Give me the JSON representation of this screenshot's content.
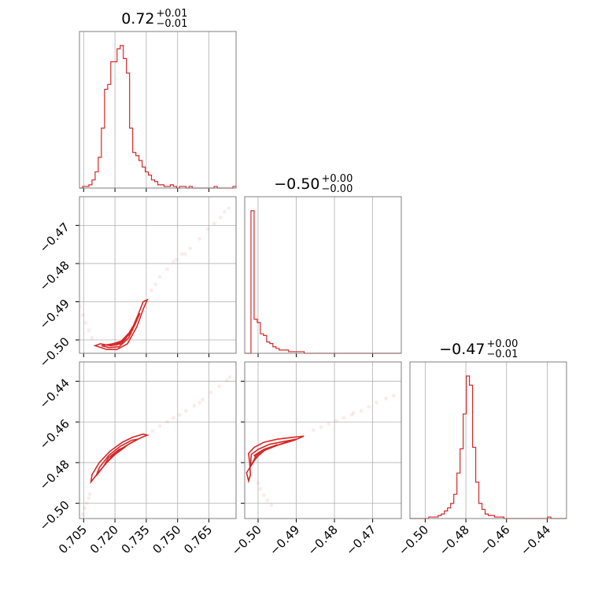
{
  "chart_data": {
    "type": "corner",
    "color": "#d62728",
    "grid": true,
    "parameters": [
      {
        "index": 0,
        "title": {
          "value": "0.72",
          "plus": "+0.01",
          "minus": "−0.01"
        },
        "range": [
          0.703,
          0.778
        ],
        "ticks": [
          0.705,
          0.72,
          0.735,
          0.75,
          0.765
        ],
        "tick_labels": [
          "0.705",
          "0.720",
          "0.735",
          "0.750",
          "0.765"
        ]
      },
      {
        "index": 1,
        "title": {
          "value": "−0.50",
          "plus": "+0.00",
          "minus": "−0.00"
        },
        "range": [
          -0.5035,
          -0.4625
        ],
        "ticks": [
          -0.5,
          -0.49,
          -0.48,
          -0.47
        ],
        "tick_labels": [
          "−0.50",
          "−0.49",
          "−0.48",
          "−0.47"
        ]
      },
      {
        "index": 2,
        "title": {
          "value": "−0.47",
          "plus": "+0.00",
          "minus": "−0.01"
        },
        "range": [
          -0.5075,
          -0.4305
        ],
        "ticks": [
          -0.5,
          -0.48,
          -0.46,
          -0.44
        ],
        "tick_labels": [
          "−0.50",
          "−0.48",
          "−0.46",
          "−0.44"
        ]
      }
    ],
    "histograms": [
      {
        "param": 0,
        "edges_start": 0.703,
        "edges_end": 0.778,
        "bins": 50,
        "counts": [
          0,
          1,
          1,
          2,
          5,
          10,
          19,
          37,
          61,
          64,
          78,
          78,
          86,
          88,
          80,
          71,
          37,
          22,
          20,
          17,
          13,
          10,
          8,
          5,
          4,
          2,
          2,
          1,
          1,
          2,
          1,
          0,
          1,
          1,
          0,
          1,
          0,
          0,
          0,
          0,
          0,
          0,
          0,
          1,
          0,
          0,
          0,
          0,
          0,
          1
        ]
      },
      {
        "param": 1,
        "edges_start": -0.5035,
        "edges_end": -0.4625,
        "bins": 50,
        "counts": [
          0,
          0,
          88,
          21,
          19,
          12,
          11,
          7,
          6,
          4,
          3,
          2,
          2,
          2,
          1,
          1,
          1,
          1,
          1,
          0,
          0,
          0,
          0,
          0,
          0,
          0,
          0,
          0,
          0,
          0,
          0,
          0,
          0,
          0,
          0,
          0,
          0,
          0,
          0,
          0,
          0,
          0,
          0,
          0,
          0,
          0,
          0,
          0,
          0,
          0
        ]
      },
      {
        "param": 2,
        "edges_start": -0.5075,
        "edges_end": -0.4305,
        "bins": 50,
        "counts": [
          0,
          0,
          0,
          0,
          0,
          0,
          1,
          1,
          1,
          2,
          3,
          5,
          7,
          10,
          16,
          30,
          46,
          69,
          94,
          88,
          47,
          24,
          10,
          6,
          3,
          2,
          2,
          1,
          1,
          1,
          0,
          0,
          0,
          0,
          0,
          0,
          0,
          0,
          0,
          0,
          0,
          0,
          0,
          0,
          1,
          0,
          0,
          0,
          0,
          0
        ]
      }
    ],
    "pairs": [
      {
        "x_param": 0,
        "y_param": 1,
        "contours": [
          [
            [
              0.7105,
              -0.5015
            ],
            [
              0.716,
              -0.5025
            ],
            [
              0.721,
              -0.5025
            ],
            [
              0.726,
              -0.501
            ],
            [
              0.7305,
              -0.4965
            ],
            [
              0.7335,
              -0.492
            ],
            [
              0.7355,
              -0.4895
            ],
            [
              0.7335,
              -0.49
            ],
            [
              0.731,
              -0.4935
            ],
            [
              0.7275,
              -0.498
            ],
            [
              0.723,
              -0.501
            ],
            [
              0.718,
              -0.5015
            ],
            [
              0.713,
              -0.501
            ],
            [
              0.7105,
              -0.5015
            ]
          ],
          [
            [
              0.7135,
              -0.5015
            ],
            [
              0.717,
              -0.502
            ],
            [
              0.722,
              -0.5018
            ],
            [
              0.7265,
              -0.4995
            ],
            [
              0.73,
              -0.4955
            ],
            [
              0.732,
              -0.493
            ],
            [
              0.7305,
              -0.4945
            ],
            [
              0.727,
              -0.4985
            ],
            [
              0.722,
              -0.5008
            ],
            [
              0.717,
              -0.5012
            ],
            [
              0.7135,
              -0.5015
            ]
          ],
          [
            [
              0.716,
              -0.5014
            ],
            [
              0.721,
              -0.5013
            ],
            [
              0.725,
              -0.4998
            ],
            [
              0.7285,
              -0.4965
            ],
            [
              0.727,
              -0.498
            ],
            [
              0.723,
              -0.5003
            ],
            [
              0.719,
              -0.501
            ],
            [
              0.716,
              -0.5014
            ]
          ]
        ],
        "scatter": [
          [
            0.703,
            -0.4912
          ],
          [
            0.7045,
            -0.4935
          ],
          [
            0.706,
            -0.4955
          ],
          [
            0.7075,
            -0.4975
          ],
          [
            0.709,
            -0.4995
          ],
          [
            0.7415,
            -0.4835
          ],
          [
            0.745,
            -0.4815
          ],
          [
            0.748,
            -0.4795
          ],
          [
            0.7495,
            -0.479
          ],
          [
            0.752,
            -0.4775
          ],
          [
            0.7535,
            -0.4775
          ],
          [
            0.756,
            -0.476
          ],
          [
            0.7605,
            -0.4735
          ],
          [
            0.7645,
            -0.471
          ],
          [
            0.7675,
            -0.4695
          ],
          [
            0.7705,
            -0.468
          ],
          [
            0.7725,
            -0.4665
          ],
          [
            0.7745,
            -0.4655
          ],
          [
            0.7395,
            -0.4855
          ],
          [
            0.7375,
            -0.487
          ]
        ]
      },
      {
        "x_param": 0,
        "y_param": 2,
        "contours": [
          [
            [
              0.7085,
              -0.4895
            ],
            [
              0.7135,
              -0.483
            ],
            [
              0.7185,
              -0.477
            ],
            [
              0.724,
              -0.4725
            ],
            [
              0.729,
              -0.4695
            ],
            [
              0.733,
              -0.4675
            ],
            [
              0.7355,
              -0.4665
            ],
            [
              0.7335,
              -0.466
            ],
            [
              0.7285,
              -0.4675
            ],
            [
              0.7235,
              -0.47
            ],
            [
              0.7175,
              -0.4745
            ],
            [
              0.7125,
              -0.48
            ],
            [
              0.709,
              -0.486
            ],
            [
              0.7085,
              -0.4895
            ]
          ],
          [
            [
              0.711,
              -0.4865
            ],
            [
              0.716,
              -0.48
            ],
            [
              0.7215,
              -0.4745
            ],
            [
              0.7265,
              -0.471
            ],
            [
              0.731,
              -0.4685
            ],
            [
              0.728,
              -0.469
            ],
            [
              0.7225,
              -0.472
            ],
            [
              0.717,
              -0.4765
            ],
            [
              0.7125,
              -0.4825
            ],
            [
              0.711,
              -0.4865
            ]
          ],
          [
            [
              0.715,
              -0.481
            ],
            [
              0.72,
              -0.476
            ],
            [
              0.725,
              -0.4722
            ],
            [
              0.722,
              -0.4735
            ],
            [
              0.717,
              -0.4775
            ],
            [
              0.715,
              -0.481
            ]
          ]
        ],
        "scatter": [
          [
            0.7045,
            -0.5055
          ],
          [
            0.7055,
            -0.5025
          ],
          [
            0.7065,
            -0.5
          ],
          [
            0.7075,
            -0.4975
          ],
          [
            0.708,
            -0.4955
          ],
          [
            0.738,
            -0.4645
          ],
          [
            0.7415,
            -0.462
          ],
          [
            0.745,
            -0.46
          ],
          [
            0.748,
            -0.458
          ],
          [
            0.751,
            -0.4565
          ],
          [
            0.754,
            -0.4545
          ],
          [
            0.758,
            -0.452
          ],
          [
            0.762,
            -0.449
          ],
          [
            0.766,
            -0.4455
          ],
          [
            0.77,
            -0.4425
          ],
          [
            0.7735,
            -0.4395
          ],
          [
            0.775,
            -0.438
          ],
          [
            0.7605,
            -0.4505
          ]
        ]
      },
      {
        "x_param": 1,
        "y_param": 2,
        "contours": [
          [
            [
              -0.5025,
              -0.4755
            ],
            [
              -0.501,
              -0.4725
            ],
            [
              -0.4985,
              -0.47
            ],
            [
              -0.495,
              -0.4685
            ],
            [
              -0.4905,
              -0.4675
            ],
            [
              -0.488,
              -0.467
            ],
            [
              -0.4905,
              -0.469
            ],
            [
              -0.495,
              -0.4715
            ],
            [
              -0.499,
              -0.4745
            ],
            [
              -0.501,
              -0.479
            ],
            [
              -0.503,
              -0.485
            ],
            [
              -0.5025,
              -0.489
            ],
            [
              -0.502,
              -0.486
            ],
            [
              -0.5022,
              -0.48
            ],
            [
              -0.5025,
              -0.4755
            ]
          ],
          [
            [
              -0.5018,
              -0.476
            ],
            [
              -0.5,
              -0.4735
            ],
            [
              -0.497,
              -0.471
            ],
            [
              -0.493,
              -0.4695
            ],
            [
              -0.49,
              -0.4685
            ],
            [
              -0.4935,
              -0.4705
            ],
            [
              -0.4975,
              -0.473
            ],
            [
              -0.5005,
              -0.4765
            ],
            [
              -0.502,
              -0.482
            ],
            [
              -0.5018,
              -0.476
            ]
          ],
          [
            [
              -0.501,
              -0.4765
            ],
            [
              -0.4985,
              -0.4735
            ],
            [
              -0.495,
              -0.4712
            ],
            [
              -0.498,
              -0.4735
            ],
            [
              -0.5005,
              -0.4775
            ],
            [
              -0.501,
              -0.4765
            ]
          ]
        ],
        "scatter": [
          [
            -0.4855,
            -0.464
          ],
          [
            -0.4835,
            -0.4625
          ],
          [
            -0.4815,
            -0.461
          ],
          [
            -0.4795,
            -0.4595
          ],
          [
            -0.4775,
            -0.458
          ],
          [
            -0.4755,
            -0.4565
          ],
          [
            -0.473,
            -0.4545
          ],
          [
            -0.471,
            -0.4525
          ],
          [
            -0.469,
            -0.4505
          ],
          [
            -0.4665,
            -0.4485
          ],
          [
            -0.4645,
            -0.447
          ],
          [
            -0.5,
            -0.49
          ],
          [
            -0.4995,
            -0.493
          ],
          [
            -0.4985,
            -0.496
          ],
          [
            -0.4975,
            -0.4985
          ],
          [
            -0.4965,
            -0.501
          ],
          [
            -0.475,
            -0.4555
          ]
        ]
      }
    ]
  }
}
